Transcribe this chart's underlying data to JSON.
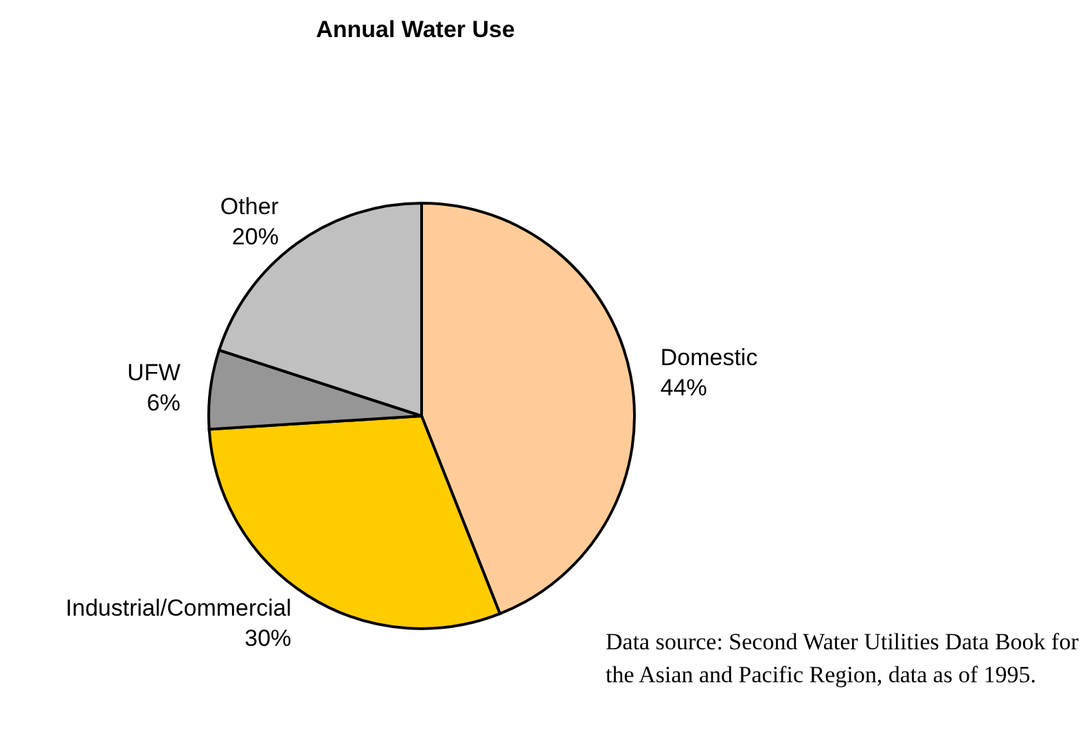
{
  "chart_data": {
    "type": "pie",
    "title": "Annual Water Use",
    "categories": [
      "Domestic",
      "Industrial/Commercial",
      "UFW",
      "Other"
    ],
    "values": [
      44,
      30,
      6,
      20
    ],
    "value_labels": [
      "44%",
      "30%",
      "6%",
      "20%"
    ],
    "colors": [
      "#ffcc99",
      "#ffcc00",
      "#969696",
      "#c0c0c0"
    ],
    "legend": false,
    "annotations": [
      "Data source: Second Water Utilities Data Book for the Asian and Pacific Region, data as of 1995."
    ]
  }
}
